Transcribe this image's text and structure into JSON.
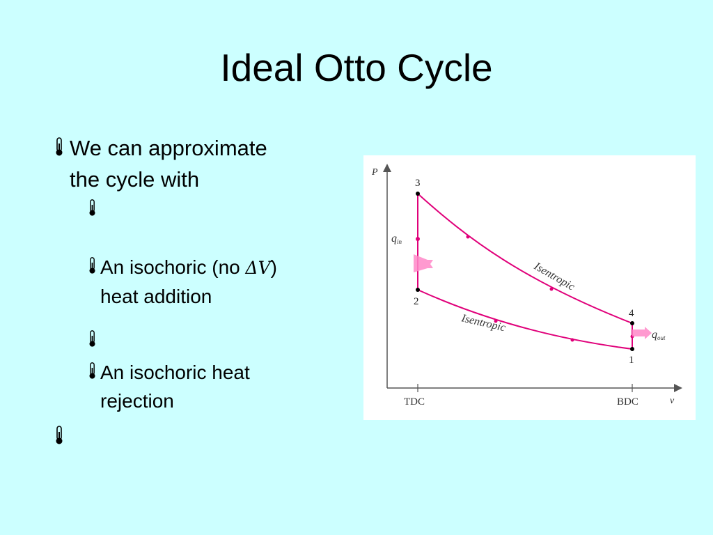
{
  "slide": {
    "title": "Ideal Otto Cycle"
  },
  "bullets": [
    {
      "text_line1": "We can approximate",
      "text_line2": "the cycle with"
    },
    {
      "sub": [
        {
          "text": ""
        },
        {
          "text_before": "An isochoric (no ",
          "symbol": "ΔV",
          "text_after": ")",
          "text_line2": "heat addition"
        },
        {
          "text": ""
        },
        {
          "text_line1": "An isochoric heat",
          "text_line2": "rejection"
        }
      ]
    },
    {
      "text": ""
    }
  ],
  "diagram": {
    "axis_y_label": "P",
    "axis_x_label": "v",
    "tick_tdc": "TDC",
    "tick_bdc": "BDC",
    "state_1": "1",
    "state_2": "2",
    "state_3": "3",
    "state_4": "4",
    "q_in_main": "q",
    "q_in_sub": "in",
    "q_out_main": "q",
    "q_out_sub": "out",
    "upper_curve_label": "Isentropic",
    "lower_curve_label": "Isentropic",
    "colors": {
      "cycle_line": "#e0007a",
      "arrow_fill": "#ff88c8",
      "axis": "#555555",
      "background": "#ccffff"
    }
  },
  "icons": {
    "bullet": "thermometer-icon"
  }
}
